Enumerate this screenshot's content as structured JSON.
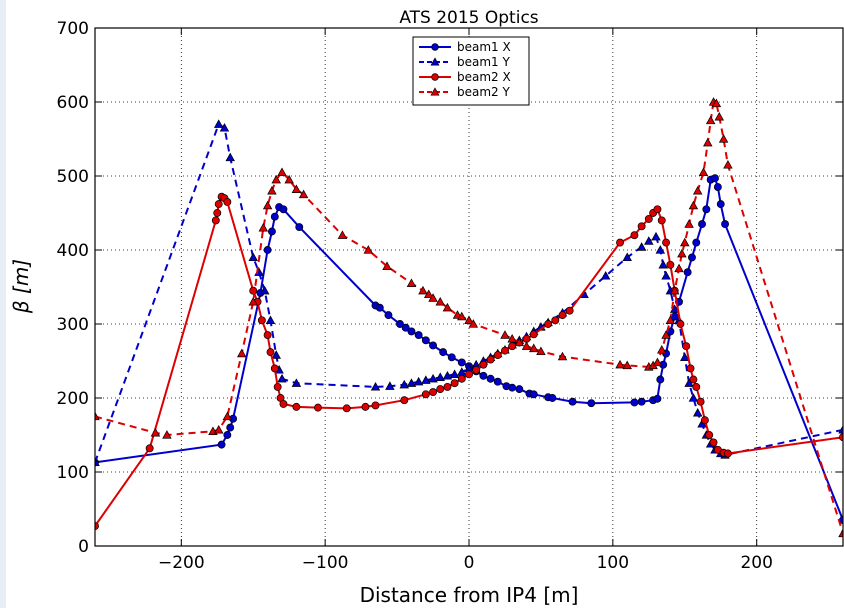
{
  "chart_data": {
    "type": "line",
    "title": "ATS 2015 Optics",
    "xlabel": "Distance from IP4 [m]",
    "ylabel": "β [m]",
    "xlim": [
      -260,
      260
    ],
    "ylim": [
      0,
      700
    ],
    "xticks": [
      -200,
      -100,
      0,
      100,
      200
    ],
    "yticks": [
      0,
      100,
      200,
      300,
      400,
      500,
      600,
      700
    ],
    "xtick_labels": [
      "−200",
      "−100",
      "0",
      "100",
      "200"
    ],
    "ytick_labels": [
      "0",
      "100",
      "200",
      "300",
      "400",
      "500",
      "600",
      "700"
    ],
    "grid": true,
    "legend_position": "top-center",
    "series": [
      {
        "name": "beam1 X",
        "color": "#0000cc",
        "dash": "solid",
        "marker": "circle",
        "points": [
          [
            -260,
            113
          ],
          [
            -172,
            137
          ],
          [
            -168,
            150
          ],
          [
            -166,
            160
          ],
          [
            -164,
            172
          ],
          [
            -145,
            342
          ],
          [
            -140,
            400
          ],
          [
            -137,
            425
          ],
          [
            -135,
            445
          ],
          [
            -132,
            458
          ],
          [
            -129,
            455
          ],
          [
            -118,
            431
          ],
          [
            -65,
            325
          ],
          [
            -62,
            322
          ],
          [
            -56,
            312
          ],
          [
            -48,
            300
          ],
          [
            -44,
            295
          ],
          [
            -40,
            290
          ],
          [
            -35,
            285
          ],
          [
            -30,
            278
          ],
          [
            -25,
            271
          ],
          [
            -18,
            262
          ],
          [
            -12,
            255
          ],
          [
            -5,
            248
          ],
          [
            0,
            243
          ],
          [
            5,
            236
          ],
          [
            10,
            230
          ],
          [
            15,
            226
          ],
          [
            20,
            222
          ],
          [
            26,
            216
          ],
          [
            30,
            214
          ],
          [
            35,
            212
          ],
          [
            42,
            206
          ],
          [
            45,
            205
          ],
          [
            55,
            201
          ],
          [
            58,
            200
          ],
          [
            72,
            195
          ],
          [
            85,
            193
          ],
          [
            115,
            194
          ],
          [
            120,
            195
          ],
          [
            128,
            197
          ],
          [
            131,
            199
          ],
          [
            133,
            225
          ],
          [
            135,
            245
          ],
          [
            137,
            260
          ],
          [
            140,
            290
          ],
          [
            143,
            310
          ],
          [
            146,
            330
          ],
          [
            152,
            370
          ],
          [
            155,
            390
          ],
          [
            158,
            410
          ],
          [
            162,
            435
          ],
          [
            165,
            455
          ],
          [
            168,
            495
          ],
          [
            171,
            497
          ],
          [
            173,
            485
          ],
          [
            175,
            462
          ],
          [
            178,
            435
          ],
          [
            260,
            35
          ]
        ]
      },
      {
        "name": "beam1 Y",
        "color": "#0000cc",
        "dash": "dashed",
        "marker": "triangle",
        "points": [
          [
            -260,
            113
          ],
          [
            -174,
            570
          ],
          [
            -170,
            565
          ],
          [
            -166,
            525
          ],
          [
            -150,
            390
          ],
          [
            -146,
            370
          ],
          [
            -142,
            345
          ],
          [
            -138,
            305
          ],
          [
            -134,
            258
          ],
          [
            -132,
            238
          ],
          [
            -130,
            226
          ],
          [
            -120,
            220
          ],
          [
            -65,
            215
          ],
          [
            -55,
            216
          ],
          [
            -45,
            218
          ],
          [
            -40,
            220
          ],
          [
            -35,
            222
          ],
          [
            -30,
            224
          ],
          [
            -25,
            226
          ],
          [
            -20,
            228
          ],
          [
            -15,
            230
          ],
          [
            -10,
            232
          ],
          [
            -5,
            235
          ],
          [
            0,
            240
          ],
          [
            5,
            245
          ],
          [
            10,
            250
          ],
          [
            15,
            255
          ],
          [
            20,
            260
          ],
          [
            25,
            265
          ],
          [
            30,
            272
          ],
          [
            35,
            278
          ],
          [
            40,
            283
          ],
          [
            45,
            290
          ],
          [
            50,
            296
          ],
          [
            55,
            302
          ],
          [
            65,
            315
          ],
          [
            80,
            340
          ],
          [
            95,
            365
          ],
          [
            110,
            390
          ],
          [
            120,
            404
          ],
          [
            125,
            412
          ],
          [
            130,
            418
          ],
          [
            133,
            400
          ],
          [
            135,
            380
          ],
          [
            137,
            365
          ],
          [
            140,
            345
          ],
          [
            143,
            320
          ],
          [
            146,
            305
          ],
          [
            150,
            255
          ],
          [
            153,
            220
          ],
          [
            156,
            200
          ],
          [
            159,
            180
          ],
          [
            162,
            165
          ],
          [
            165,
            150
          ],
          [
            168,
            138
          ],
          [
            171,
            130
          ],
          [
            175,
            125
          ],
          [
            178,
            123
          ],
          [
            260,
            157
          ]
        ]
      },
      {
        "name": "beam2 X",
        "color": "#dd0000",
        "dash": "solid",
        "marker": "circle",
        "points": [
          [
            -260,
            27
          ],
          [
            -222,
            132
          ],
          [
            -176,
            440
          ],
          [
            -175,
            450
          ],
          [
            -174,
            462
          ],
          [
            -172,
            472
          ],
          [
            -170,
            470
          ],
          [
            -168,
            465
          ],
          [
            -150,
            345
          ],
          [
            -147,
            330
          ],
          [
            -144,
            305
          ],
          [
            -140,
            285
          ],
          [
            -138,
            262
          ],
          [
            -135,
            240
          ],
          [
            -133,
            215
          ],
          [
            -131,
            200
          ],
          [
            -129,
            192
          ],
          [
            -120,
            188
          ],
          [
            -105,
            187
          ],
          [
            -85,
            186
          ],
          [
            -72,
            188
          ],
          [
            -65,
            190
          ],
          [
            -45,
            197
          ],
          [
            -30,
            205
          ],
          [
            -25,
            208
          ],
          [
            -20,
            212
          ],
          [
            -15,
            215
          ],
          [
            -10,
            220
          ],
          [
            -5,
            226
          ],
          [
            0,
            232
          ],
          [
            5,
            238
          ],
          [
            10,
            245
          ],
          [
            15,
            252
          ],
          [
            20,
            258
          ],
          [
            25,
            264
          ],
          [
            30,
            270
          ],
          [
            35,
            275
          ],
          [
            40,
            280
          ],
          [
            45,
            286
          ],
          [
            55,
            300
          ],
          [
            60,
            305
          ],
          [
            65,
            312
          ],
          [
            70,
            318
          ],
          [
            105,
            410
          ],
          [
            115,
            420
          ],
          [
            120,
            432
          ],
          [
            125,
            442
          ],
          [
            128,
            450
          ],
          [
            131,
            455
          ],
          [
            134,
            440
          ],
          [
            137,
            410
          ],
          [
            140,
            380
          ],
          [
            143,
            345
          ],
          [
            147,
            300
          ],
          [
            151,
            270
          ],
          [
            154,
            240
          ],
          [
            156,
            225
          ],
          [
            158,
            215
          ],
          [
            161,
            195
          ],
          [
            164,
            170
          ],
          [
            167,
            150
          ],
          [
            170,
            140
          ],
          [
            173,
            130
          ],
          [
            177,
            126
          ],
          [
            180,
            125
          ],
          [
            260,
            147
          ]
        ]
      },
      {
        "name": "beam2 Y",
        "color": "#dd0000",
        "dash": "dashed",
        "marker": "triangle",
        "points": [
          [
            -260,
            175
          ],
          [
            -218,
            153
          ],
          [
            -210,
            150
          ],
          [
            -178,
            155
          ],
          [
            -174,
            157
          ],
          [
            -168,
            175
          ],
          [
            -158,
            260
          ],
          [
            -150,
            330
          ],
          [
            -143,
            430
          ],
          [
            -140,
            460
          ],
          [
            -137,
            480
          ],
          [
            -134,
            495
          ],
          [
            -130,
            505
          ],
          [
            -125,
            495
          ],
          [
            -120,
            482
          ],
          [
            -115,
            475
          ],
          [
            -88,
            420
          ],
          [
            -70,
            400
          ],
          [
            -57,
            378
          ],
          [
            -40,
            355
          ],
          [
            -32,
            345
          ],
          [
            -28,
            340
          ],
          [
            -25,
            335
          ],
          [
            -20,
            330
          ],
          [
            -15,
            322
          ],
          [
            -8,
            312
          ],
          [
            -5,
            310
          ],
          [
            0,
            305
          ],
          [
            3,
            300
          ],
          [
            25,
            285
          ],
          [
            30,
            280
          ],
          [
            35,
            275
          ],
          [
            40,
            270
          ],
          [
            45,
            267
          ],
          [
            50,
            263
          ],
          [
            65,
            256
          ],
          [
            105,
            245
          ],
          [
            110,
            244
          ],
          [
            125,
            242
          ],
          [
            128,
            244
          ],
          [
            131,
            248
          ],
          [
            134,
            265
          ],
          [
            137,
            285
          ],
          [
            140,
            305
          ],
          [
            143,
            345
          ],
          [
            146,
            375
          ],
          [
            148,
            395
          ],
          [
            150,
            410
          ],
          [
            153,
            435
          ],
          [
            156,
            460
          ],
          [
            159,
            480
          ],
          [
            163,
            505
          ],
          [
            166,
            545
          ],
          [
            168,
            575
          ],
          [
            170,
            600
          ],
          [
            172,
            598
          ],
          [
            174,
            580
          ],
          [
            177,
            550
          ],
          [
            180,
            515
          ],
          [
            260,
            17
          ]
        ]
      }
    ]
  }
}
